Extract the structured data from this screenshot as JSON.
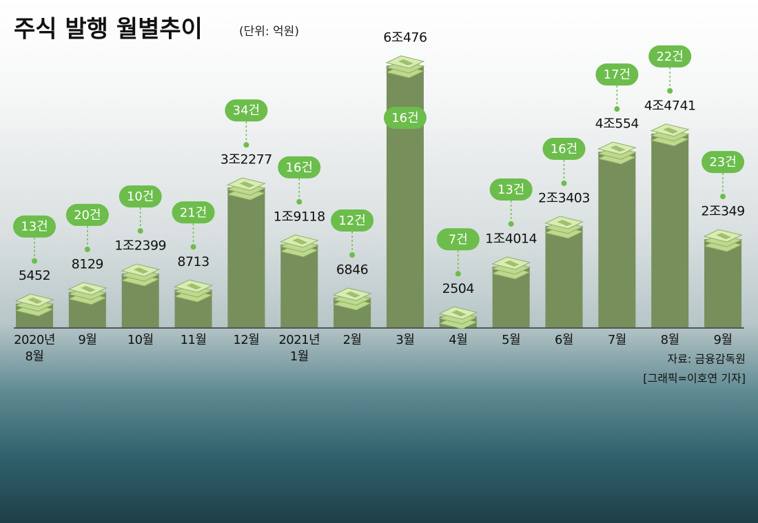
{
  "title": "주식 발행 월별추이",
  "unit": "(단위: 억원)",
  "source": "자료: 금융감독원",
  "credit": "[그래픽=이호연 기자]",
  "chart_data": {
    "type": "bar",
    "categories": [
      "2020년\n8월",
      "9월",
      "10월",
      "11월",
      "12월",
      "2021년\n1월",
      "2월",
      "3월",
      "4월",
      "5월",
      "6월",
      "7월",
      "8월",
      "9월"
    ],
    "values": [
      5452,
      8129,
      12399,
      8713,
      32277,
      19118,
      6846,
      60476,
      2504,
      14014,
      23403,
      40554,
      44741,
      20349
    ],
    "value_labels": [
      "5452",
      "8129",
      "1조2399",
      "8713",
      "3조2277",
      "1조9118",
      "6846",
      "6조476",
      "2504",
      "1조4014",
      "2조3403",
      "4조554",
      "4조4741",
      "2조349"
    ],
    "counts": [
      13,
      20,
      10,
      21,
      34,
      16,
      12,
      16,
      7,
      13,
      16,
      17,
      22,
      23
    ],
    "count_labels": [
      "13건",
      "20건",
      "10건",
      "21건",
      "34건",
      "16건",
      "12건",
      "16건",
      "7건",
      "13건",
      "16건",
      "17건",
      "22건",
      "23건"
    ],
    "color": "#778f5b",
    "count_color": "#6cbd4c"
  }
}
